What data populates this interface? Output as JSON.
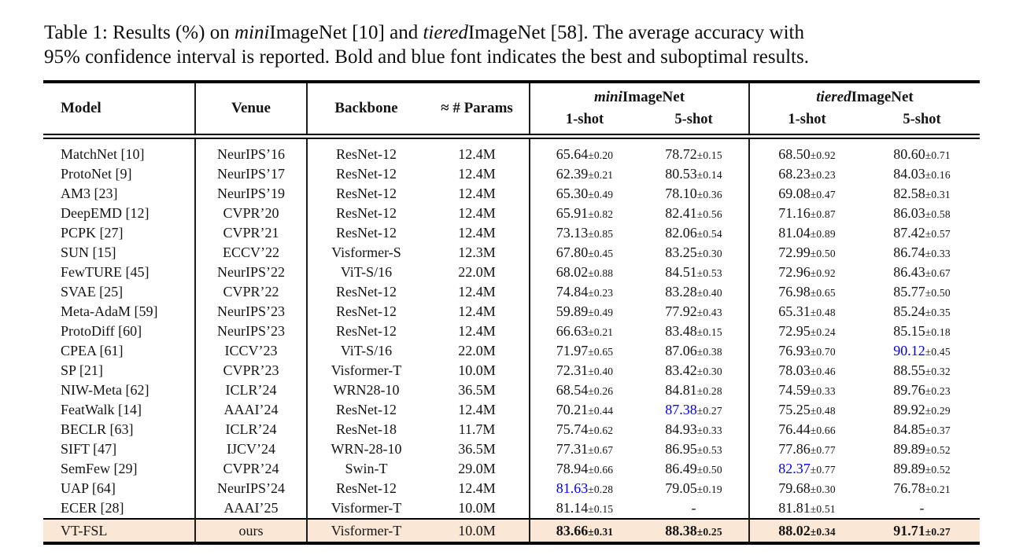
{
  "caption": {
    "part1": "Table 1: Results (%) on ",
    "mini": "mini",
    "part2": "ImageNet [10] and ",
    "tiered": "tiered",
    "part3": "ImageNet [58]. The average accuracy with",
    "line2": "95% confidence interval is reported. Bold and blue font indicates the best and suboptimal results."
  },
  "header": {
    "model": "Model",
    "venue": "Venue",
    "backbone": "Backbone",
    "params": "≈ # Params",
    "mini_italic": "mini",
    "tiered_italic": "tiered",
    "imagenet": "ImageNet",
    "shot1": "1-shot",
    "shot5": "5-shot"
  },
  "colors": {
    "highlight": "#fae7d6",
    "suboptimal_blue": "#0000ee"
  },
  "table": {
    "rows": [
      {
        "model": "MatchNet [10]",
        "venue": "NeurIPS’16",
        "backbone": "ResNet-12",
        "params": "12.4M",
        "results": [
          {
            "v": "65.64",
            "pm": "±0.20"
          },
          {
            "v": "78.72",
            "pm": "±0.15"
          },
          {
            "v": "68.50",
            "pm": "±0.92"
          },
          {
            "v": "80.60",
            "pm": "±0.71"
          }
        ]
      },
      {
        "model": "ProtoNet [9]",
        "venue": "NeurIPS’17",
        "backbone": "ResNet-12",
        "params": "12.4M",
        "results": [
          {
            "v": "62.39",
            "pm": "±0.21"
          },
          {
            "v": "80.53",
            "pm": "±0.14"
          },
          {
            "v": "68.23",
            "pm": "±0.23"
          },
          {
            "v": "84.03",
            "pm": "±0.16"
          }
        ]
      },
      {
        "model": "AM3 [23]",
        "venue": "NeurIPS’19",
        "backbone": "ResNet-12",
        "params": "12.4M",
        "results": [
          {
            "v": "65.30",
            "pm": "±0.49"
          },
          {
            "v": "78.10",
            "pm": "±0.36"
          },
          {
            "v": "69.08",
            "pm": "±0.47"
          },
          {
            "v": "82.58",
            "pm": "±0.31"
          }
        ]
      },
      {
        "model": "DeepEMD [12]",
        "venue": "CVPR’20",
        "backbone": "ResNet-12",
        "params": "12.4M",
        "results": [
          {
            "v": "65.91",
            "pm": "±0.82"
          },
          {
            "v": "82.41",
            "pm": "±0.56"
          },
          {
            "v": "71.16",
            "pm": "±0.87"
          },
          {
            "v": "86.03",
            "pm": "±0.58"
          }
        ]
      },
      {
        "model": "PCPK [27]",
        "venue": "CVPR’21",
        "backbone": "ResNet-12",
        "params": "12.4M",
        "results": [
          {
            "v": "73.13",
            "pm": "±0.85"
          },
          {
            "v": "82.06",
            "pm": "±0.54"
          },
          {
            "v": "81.04",
            "pm": "±0.89"
          },
          {
            "v": "87.42",
            "pm": "±0.57"
          }
        ]
      },
      {
        "model": "SUN [15]",
        "venue": "ECCV’22",
        "backbone": "Visformer-S",
        "params": "12.3M",
        "results": [
          {
            "v": "67.80",
            "pm": "±0.45"
          },
          {
            "v": "83.25",
            "pm": "±0.30"
          },
          {
            "v": "72.99",
            "pm": "±0.50"
          },
          {
            "v": "86.74",
            "pm": "±0.33"
          }
        ]
      },
      {
        "model": "FewTURE [45]",
        "venue": "NeurIPS’22",
        "backbone": "ViT-S/16",
        "params": "22.0M",
        "results": [
          {
            "v": "68.02",
            "pm": "±0.88"
          },
          {
            "v": "84.51",
            "pm": "±0.53"
          },
          {
            "v": "72.96",
            "pm": "±0.92"
          },
          {
            "v": "86.43",
            "pm": "±0.67"
          }
        ]
      },
      {
        "model": "SVAE [25]",
        "venue": "CVPR’22",
        "backbone": "ResNet-12",
        "params": "12.4M",
        "results": [
          {
            "v": "74.84",
            "pm": "±0.23"
          },
          {
            "v": "83.28",
            "pm": "±0.40"
          },
          {
            "v": "76.98",
            "pm": "±0.65"
          },
          {
            "v": "85.77",
            "pm": "±0.50"
          }
        ]
      },
      {
        "model": "Meta-AdaM [59]",
        "venue": "NeurIPS’23",
        "backbone": "ResNet-12",
        "params": "12.4M",
        "results": [
          {
            "v": "59.89",
            "pm": "±0.49"
          },
          {
            "v": "77.92",
            "pm": "±0.43"
          },
          {
            "v": "65.31",
            "pm": "±0.48"
          },
          {
            "v": "85.24",
            "pm": "±0.35"
          }
        ]
      },
      {
        "model": "ProtoDiff [60]",
        "venue": "NeurIPS’23",
        "backbone": "ResNet-12",
        "params": "12.4M",
        "results": [
          {
            "v": "66.63",
            "pm": "±0.21"
          },
          {
            "v": "83.48",
            "pm": "±0.15"
          },
          {
            "v": "72.95",
            "pm": "±0.24"
          },
          {
            "v": "85.15",
            "pm": "±0.18"
          }
        ]
      },
      {
        "model": "CPEA [61]",
        "venue": "ICCV’23",
        "backbone": "ViT-S/16",
        "params": "22.0M",
        "results": [
          {
            "v": "71.97",
            "pm": "±0.65"
          },
          {
            "v": "87.06",
            "pm": "±0.38"
          },
          {
            "v": "76.93",
            "pm": "±0.70"
          },
          {
            "v": "90.12",
            "pm": "±0.45",
            "s": "blue"
          }
        ]
      },
      {
        "model": "SP [21]",
        "venue": "CVPR’23",
        "backbone": "Visformer-T",
        "params": "10.0M",
        "results": [
          {
            "v": "72.31",
            "pm": "±0.40"
          },
          {
            "v": "83.42",
            "pm": "±0.30"
          },
          {
            "v": "78.03",
            "pm": "±0.46"
          },
          {
            "v": "88.55",
            "pm": "±0.32"
          }
        ]
      },
      {
        "model": "NIW-Meta [62]",
        "venue": "ICLR’24",
        "backbone": "WRN28-10",
        "params": "36.5M",
        "results": [
          {
            "v": "68.54",
            "pm": "±0.26"
          },
          {
            "v": "84.81",
            "pm": "±0.28"
          },
          {
            "v": "74.59",
            "pm": "±0.33"
          },
          {
            "v": "89.76",
            "pm": "±0.23"
          }
        ]
      },
      {
        "model": "FeatWalk [14]",
        "venue": "AAAI’24",
        "backbone": "ResNet-12",
        "params": "12.4M",
        "results": [
          {
            "v": "70.21",
            "pm": "±0.44"
          },
          {
            "v": "87.38",
            "pm": "±0.27",
            "s": "blue"
          },
          {
            "v": "75.25",
            "pm": "±0.48"
          },
          {
            "v": "89.92",
            "pm": "±0.29"
          }
        ]
      },
      {
        "model": "BECLR [63]",
        "venue": "ICLR’24",
        "backbone": "ResNet-18",
        "params": "11.7M",
        "results": [
          {
            "v": "75.74",
            "pm": "±0.62"
          },
          {
            "v": "84.93",
            "pm": "±0.33"
          },
          {
            "v": "76.44",
            "pm": "±0.66"
          },
          {
            "v": "84.85",
            "pm": "±0.37"
          }
        ]
      },
      {
        "model": "SIFT [47]",
        "venue": "IJCV’24",
        "backbone": "WRN-28-10",
        "params": "36.5M",
        "results": [
          {
            "v": "77.31",
            "pm": "±0.67"
          },
          {
            "v": "86.95",
            "pm": "±0.53"
          },
          {
            "v": "77.86",
            "pm": "±0.77"
          },
          {
            "v": "89.89",
            "pm": "±0.52"
          }
        ]
      },
      {
        "model": "SemFew [29]",
        "venue": "CVPR’24",
        "backbone": "Swin-T",
        "params": "29.0M",
        "results": [
          {
            "v": "78.94",
            "pm": "±0.66"
          },
          {
            "v": "86.49",
            "pm": "±0.50"
          },
          {
            "v": "82.37",
            "pm": "±0.77",
            "s": "blue"
          },
          {
            "v": "89.89",
            "pm": "±0.52"
          }
        ]
      },
      {
        "model": "UAP [64]",
        "venue": "NeurIPS’24",
        "backbone": "ResNet-12",
        "params": "12.4M",
        "results": [
          {
            "v": "81.63",
            "pm": "±0.28",
            "s": "blue"
          },
          {
            "v": "79.05",
            "pm": "±0.19"
          },
          {
            "v": "79.68",
            "pm": "±0.30"
          },
          {
            "v": "76.78",
            "pm": "±0.21"
          }
        ]
      },
      {
        "model": "ECER [28]",
        "venue": "AAAI’25",
        "backbone": "Visformer-T",
        "params": "10.0M",
        "results": [
          {
            "v": "81.14",
            "pm": "±0.15"
          },
          {
            "v": "-",
            "pm": ""
          },
          {
            "v": "81.81",
            "pm": "±0.51"
          },
          {
            "v": "-",
            "pm": ""
          }
        ]
      },
      {
        "model": "VT-FSL",
        "venue": "ours",
        "backbone": "Visformer-T",
        "params": "10.0M",
        "highlight": true,
        "bold": true,
        "results": [
          {
            "v": "83.66",
            "pm": "±0.31"
          },
          {
            "v": "88.38",
            "pm": "±0.25"
          },
          {
            "v": "88.02",
            "pm": "±0.34"
          },
          {
            "v": "91.71",
            "pm": "±0.27"
          }
        ]
      }
    ]
  }
}
